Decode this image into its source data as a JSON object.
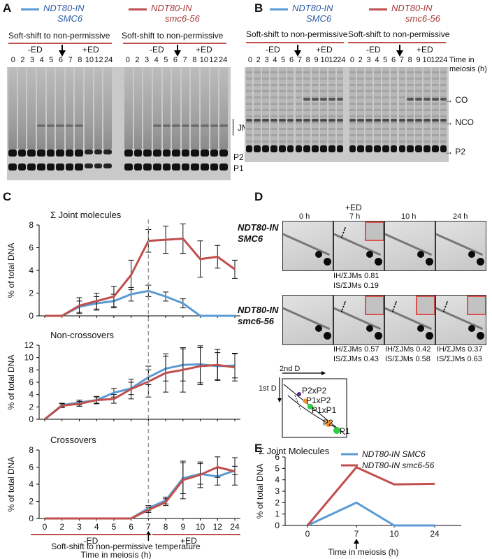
{
  "panels": {
    "A": "A",
    "B": "B",
    "C": "C",
    "D": "D",
    "E": "E"
  },
  "legend": {
    "wt_line1": "NDT80-IN",
    "wt_line2": "SMC6",
    "mut_line1": "NDT80-IN",
    "mut_line2": "smc6-56",
    "wt_color": "#5b9bd5",
    "mut_color": "#c0504d"
  },
  "gels": {
    "soft_shift": "Soft-shift to non-permissive",
    "minus_ed": "-ED",
    "plus_ed": "+ED",
    "lanes": [
      "0",
      "2",
      "3",
      "4",
      "5",
      "6",
      "7",
      "8",
      "9",
      "10",
      "12",
      "24"
    ],
    "lanes_A": [
      "0",
      "2",
      "3",
      "4",
      "5",
      "6",
      "7",
      "8",
      "10",
      "12",
      "24"
    ],
    "time_label_1": "Time in",
    "time_label_2": "meiosis (h)",
    "jms": "JMs",
    "p2": "P2",
    "p1": "P1",
    "co": "CO",
    "nco": "NCO",
    "p2_arrow": "→ P2",
    "co_arrow": "→ CO",
    "nco_arrow": "→ NCO"
  },
  "panelC": {
    "ylabel": "% of total DNA",
    "xlabel_shift": "Soft-shift to non-permissive temperature",
    "xlabel_time": "Time in meiosis (h)",
    "minus_ed": "-ED",
    "plus_ed": "+ED",
    "x_ticks": [
      "0",
      "2",
      "3",
      "4",
      "5",
      "6",
      "7",
      "8",
      "9",
      "10",
      "12",
      "24"
    ]
  },
  "panelD": {
    "plus_ed": "+ED",
    "times": [
      "0 h",
      "7 h",
      "10 h",
      "24 h"
    ],
    "row1": "NDT80-IN",
    "row1b": "SMC6",
    "row2": "NDT80-IN",
    "row2b": "smc6-56",
    "wt_ratios": {
      "ih": "IH/ΣJMs 0.81",
      "is": "IS/ΣJMs 0.19"
    },
    "mut_ratios": [
      {
        "ih": "IH/ΣJMs 0.57",
        "is": "IS/ΣJMs 0.43"
      },
      {
        "ih": "IH/ΣJMs 0.42",
        "is": "IS/ΣJMs 0.58"
      },
      {
        "ih": "IH/ΣJMs 0.37",
        "is": "IS/ΣJMs 0.63"
      }
    ],
    "schematic": {
      "second_d": "2nd D",
      "first_d": "1st D",
      "p2xp2": "P2xP2",
      "p1xp2": "P1xP2",
      "p1xp1": "P1xP1",
      "p2": "P2",
      "p1": "P1"
    }
  },
  "chart_data": [
    {
      "type": "line",
      "title": "Σ Joint molecules",
      "ylabel": "% of total DNA",
      "xlabel": "Time in meiosis (h)",
      "categories": [
        "0",
        "2",
        "3",
        "4",
        "5",
        "6",
        "7",
        "8",
        "9",
        "10",
        "12",
        "24"
      ],
      "ylim": [
        0,
        8
      ],
      "yticks": [
        0,
        2,
        4,
        6,
        8
      ],
      "series": [
        {
          "name": "NDT80-IN SMC6",
          "color": "#5b9bd5",
          "values": [
            0,
            0,
            0.8,
            1.1,
            1.3,
            1.9,
            2.2,
            1.7,
            1.1,
            0,
            0,
            0
          ],
          "errors": [
            0,
            0,
            0.5,
            0.6,
            0.6,
            0.6,
            0.5,
            0.4,
            0.4,
            0,
            0,
            0
          ]
        },
        {
          "name": "NDT80-IN smc6-56",
          "color": "#c0504d",
          "values": [
            0,
            0,
            0.9,
            1.3,
            1.7,
            3.6,
            6.6,
            6.7,
            6.8,
            5.0,
            5.2,
            4.1
          ],
          "errors": [
            0,
            0,
            0.7,
            0.7,
            0.9,
            1.3,
            1.0,
            1.2,
            1.3,
            1.6,
            1.0,
            0.8
          ]
        }
      ]
    },
    {
      "type": "line",
      "title": "Non-crossovers",
      "ylabel": "% of total DNA",
      "xlabel": "Time in meiosis (h)",
      "categories": [
        "0",
        "2",
        "3",
        "4",
        "5",
        "6",
        "7",
        "8",
        "9",
        "10",
        "12",
        "24"
      ],
      "ylim": [
        0,
        12
      ],
      "yticks": [
        0,
        2,
        4,
        6,
        8,
        10,
        12
      ],
      "series": [
        {
          "name": "NDT80-IN SMC6",
          "color": "#5b9bd5",
          "values": [
            0,
            2.3,
            2.7,
            3.1,
            4.3,
            5.0,
            6.8,
            8.2,
            8.8,
            8.9,
            8.6,
            8.7
          ],
          "errors": [
            0,
            0.3,
            0.4,
            0.5,
            0.7,
            1.0,
            1.2,
            2.0,
            2.6,
            3.0,
            2.2,
            2.0
          ]
        },
        {
          "name": "NDT80-IN smc6-56",
          "color": "#c0504d",
          "values": [
            0,
            2.2,
            2.5,
            3.1,
            3.3,
            4.9,
            6.1,
            7.5,
            8.0,
            8.6,
            8.8,
            8.4
          ],
          "errors": [
            0,
            0.3,
            0.4,
            0.6,
            0.7,
            1.6,
            2.5,
            3.1,
            3.6,
            3.0,
            2.5,
            2.2
          ]
        }
      ]
    },
    {
      "type": "line",
      "title": "Crossovers",
      "ylabel": "% of total DNA",
      "xlabel": "Time in meiosis (h)",
      "categories": [
        "0",
        "2",
        "3",
        "4",
        "5",
        "6",
        "7",
        "8",
        "9",
        "10",
        "12",
        "24"
      ],
      "ylim": [
        0,
        8
      ],
      "yticks": [
        0,
        2,
        4,
        6,
        8
      ],
      "series": [
        {
          "name": "NDT80-IN SMC6",
          "color": "#5b9bd5",
          "values": [
            0,
            0,
            0,
            0,
            0,
            0,
            1.2,
            2.1,
            4.7,
            5.2,
            4.9,
            5.6
          ],
          "errors": [
            0,
            0,
            0,
            0,
            0,
            0,
            0.3,
            0.4,
            1.8,
            1.2,
            1.0,
            0.5
          ]
        },
        {
          "name": "NDT80-IN smc6-56",
          "color": "#c0504d",
          "values": [
            0,
            0,
            0,
            0,
            0,
            0,
            1.0,
            1.9,
            4.5,
            5.1,
            6.0,
            5.5
          ],
          "errors": [
            0,
            0,
            0,
            0,
            0,
            0,
            0.3,
            0.4,
            2.2,
            1.5,
            1.2,
            1.6
          ]
        }
      ]
    },
    {
      "type": "line",
      "title": "Σ Joint Molecules",
      "ylabel": "% of total DNA",
      "xlabel": "Time in meiosis (h)",
      "categories": [
        "0",
        "7",
        "10",
        "24"
      ],
      "ylim": [
        0,
        6
      ],
      "yticks": [
        0,
        1,
        2,
        3,
        4,
        5,
        6
      ],
      "series": [
        {
          "name": "NDT80-IN SMC6",
          "color": "#5b9bd5",
          "values": [
            0,
            2.0,
            0,
            0
          ]
        },
        {
          "name": "NDT80-IN smc6-56",
          "color": "#c0504d",
          "values": [
            0,
            5.1,
            3.6,
            3.65
          ]
        }
      ]
    }
  ]
}
